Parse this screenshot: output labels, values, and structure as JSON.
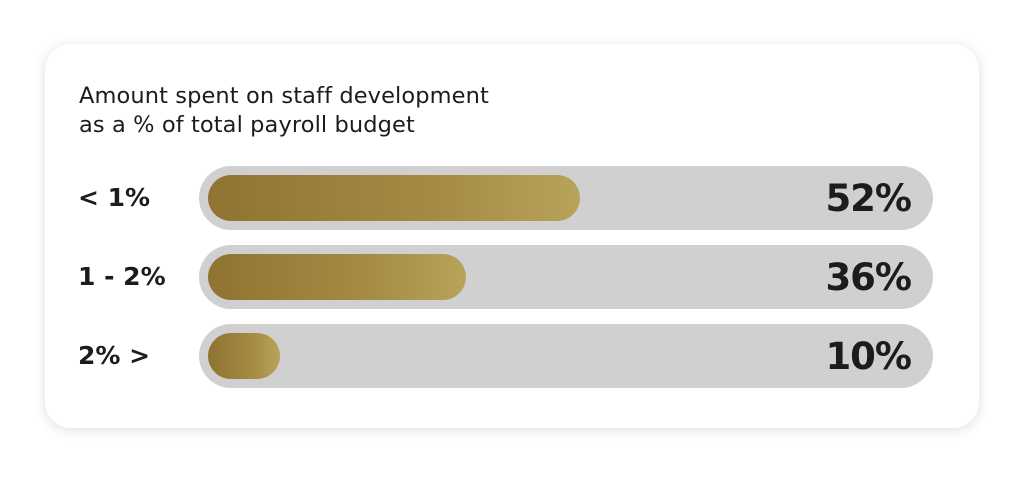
{
  "chart_data": {
    "type": "bar",
    "title": "Amount spent on staff development as a % of total payroll budget",
    "title_lines": [
      "Amount spent on staff development",
      "as a % of total payroll budget"
    ],
    "categories": [
      "< 1%",
      "1 - 2%",
      "2% >"
    ],
    "values": [
      52,
      36,
      10
    ],
    "value_labels": [
      "52%",
      "36%",
      "10%"
    ],
    "unit": "%",
    "xlim": [
      0,
      100
    ],
    "orientation": "horizontal",
    "grid": false,
    "legend": "none"
  },
  "colors": {
    "bar_fill_start": "#8f7431",
    "bar_fill_end": "#b8a35a",
    "track": "#d0d0d0",
    "text": "#1c1c1c"
  }
}
